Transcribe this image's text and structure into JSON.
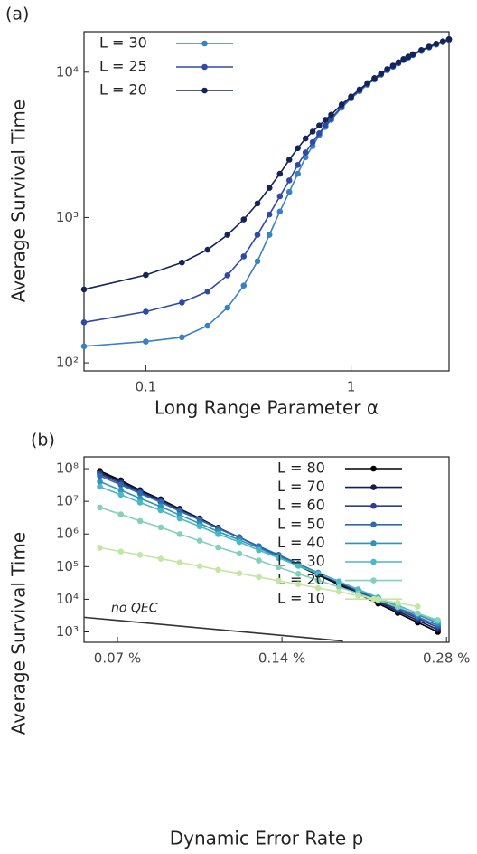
{
  "chart_data": [
    {
      "type": "line",
      "panel_label": "(a)",
      "x_label": "Long Range Parameter α",
      "y_label": "Average Survival Time",
      "xscale": "log",
      "yscale": "log",
      "legend": "upper left",
      "xlim": [
        0.05,
        3
      ],
      "xticks": [
        0.1,
        1
      ],
      "ylim": [
        88,
        19000
      ],
      "yticks": [
        {
          "value": 100,
          "label": "10²"
        },
        {
          "value": 1000,
          "label": "10³"
        },
        {
          "value": 10000,
          "label": "10⁴"
        }
      ],
      "x": [
        0.05,
        0.1,
        0.15,
        0.2,
        0.25,
        0.3,
        0.35,
        0.4,
        0.45,
        0.5,
        0.55,
        0.6,
        0.65,
        0.7,
        0.75,
        0.8,
        0.9,
        1.0,
        1.1,
        1.2,
        1.3,
        1.4,
        1.5,
        1.6,
        1.7,
        1.8,
        1.9,
        2.0,
        2.2,
        2.4,
        2.6,
        2.8,
        3.0
      ],
      "series": [
        {
          "name": "L = 30",
          "color": "#3a80c2",
          "values": [
            130,
            140,
            150,
            180,
            240,
            340,
            500,
            760,
            1100,
            1500,
            2000,
            2600,
            3100,
            3700,
            4200,
            4700,
            5700,
            6600,
            7400,
            8200,
            8900,
            9600,
            10300,
            10900,
            11500,
            12100,
            12600,
            13100,
            14000,
            14800,
            15500,
            16100,
            16700
          ]
        },
        {
          "name": "L = 25",
          "color": "#2f4aa6",
          "values": [
            190,
            225,
            260,
            310,
            400,
            540,
            760,
            1050,
            1400,
            1800,
            2300,
            2800,
            3300,
            3800,
            4300,
            4800,
            5800,
            6700,
            7500,
            8300,
            9000,
            9700,
            10400,
            11000,
            11600,
            12200,
            12700,
            13200,
            14100,
            14900,
            15600,
            16200,
            16800
          ]
        },
        {
          "name": "L = 20",
          "color": "#142459",
          "values": [
            320,
            402,
            490,
            600,
            760,
            970,
            1250,
            1600,
            2000,
            2500,
            3000,
            3500,
            3900,
            4300,
            4700,
            5100,
            6000,
            6800,
            7600,
            8400,
            9100,
            9800,
            10500,
            11100,
            11700,
            12300,
            12800,
            13300,
            14200,
            15000,
            15700,
            16300,
            16900
          ]
        }
      ]
    },
    {
      "type": "line",
      "panel_label": "(b)",
      "x_label": "Dynamic Error Rate p",
      "y_label": "Average Survival Time",
      "xscale": "log",
      "yscale": "log",
      "legend": "upper right",
      "xlim": [
        0.0608,
        0.283
      ],
      "xticks": [
        {
          "value": 0.07,
          "label": "0.07 %"
        },
        {
          "value": 0.14,
          "label": "0.14 %"
        },
        {
          "value": 0.28,
          "label": "0.28 %"
        }
      ],
      "ylim": [
        480,
        230000000
      ],
      "yticks": [
        {
          "value": 1000,
          "label": "10³"
        },
        {
          "value": 10000,
          "label": "10⁴"
        },
        {
          "value": 100000,
          "label": "10⁵"
        },
        {
          "value": 1000000,
          "label": "10⁶"
        },
        {
          "value": 10000000,
          "label": "10⁷"
        },
        {
          "value": 100000000,
          "label": "10⁸"
        }
      ],
      "x": [
        0.065,
        0.071,
        0.077,
        0.084,
        0.091,
        0.099,
        0.107,
        0.117,
        0.127,
        0.138,
        0.15,
        0.163,
        0.178,
        0.193,
        0.21,
        0.228,
        0.248,
        0.27
      ],
      "series": [
        {
          "name": "L = 80",
          "color": "#000000",
          "values": [
            85000000,
            44000000,
            22000000,
            11500000,
            5900000,
            3000000,
            1550000,
            790000,
            410000,
            210000,
            107000,
            55000,
            28000,
            14500,
            7400,
            3800,
            1950,
            1000
          ]
        },
        {
          "name": "L = 70",
          "color": "#141e4f",
          "values": [
            76000000,
            40000000,
            21000000,
            10700000,
            5600000,
            2900000,
            1520000,
            790000,
            410000,
            215000,
            112000,
            59000,
            30000,
            16000,
            8300,
            4300,
            2250,
            1170
          ]
        },
        {
          "name": "L = 60",
          "color": "#2c3d93",
          "values": [
            68000000,
            36000000,
            19000000,
            10000000,
            5300000,
            2800000,
            1500000,
            790000,
            420000,
            220000,
            117000,
            62000,
            33000,
            17500,
            9200,
            4900,
            2600,
            1370
          ]
        },
        {
          "name": "L = 50",
          "color": "#2f6aad",
          "values": [
            60000000,
            32000000,
            17400000,
            9400000,
            5000000,
            2700000,
            1460000,
            780000,
            420000,
            230000,
            122000,
            65000,
            35000,
            19000,
            10200,
            5500,
            2900,
            1580
          ]
        },
        {
          "name": "L = 40",
          "color": "#2e93b8",
          "values": [
            40000000,
            22000000,
            12300000,
            6900000,
            3800000,
            2100000,
            1180000,
            660000,
            370000,
            200000,
            113000,
            63000,
            35000,
            19500,
            10800,
            6000,
            3350,
            1860
          ]
        },
        {
          "name": "L = 30",
          "color": "#4bb8c4",
          "values": [
            28000000,
            16000000,
            9200000,
            5300000,
            3000000,
            1700000,
            990000,
            570000,
            320000,
            185000,
            106000,
            61000,
            35000,
            20000,
            11400,
            6500,
            3700,
            2140
          ]
        },
        {
          "name": "L = 20",
          "color": "#84d0b8",
          "values": [
            6500000,
            4000000,
            2500000,
            1600000,
            990000,
            620000,
            390000,
            250000,
            154000,
            96000,
            60000,
            38000,
            24000,
            15000,
            9300,
            5800,
            3700,
            2300
          ]
        },
        {
          "name": "L = 10",
          "color": "#c4e6a4",
          "values": [
            380000,
            290000,
            230000,
            175000,
            135000,
            104000,
            80000,
            62000,
            48000,
            37000,
            29000,
            22000,
            17000,
            13000,
            10000,
            7800,
            6000,
            null
          ]
        }
      ],
      "annotation_line": {
        "label": "no QEC",
        "color": "#333333",
        "x": [
          0.0608,
          0.181
        ],
        "values": [
          2800,
          525
        ]
      }
    }
  ]
}
